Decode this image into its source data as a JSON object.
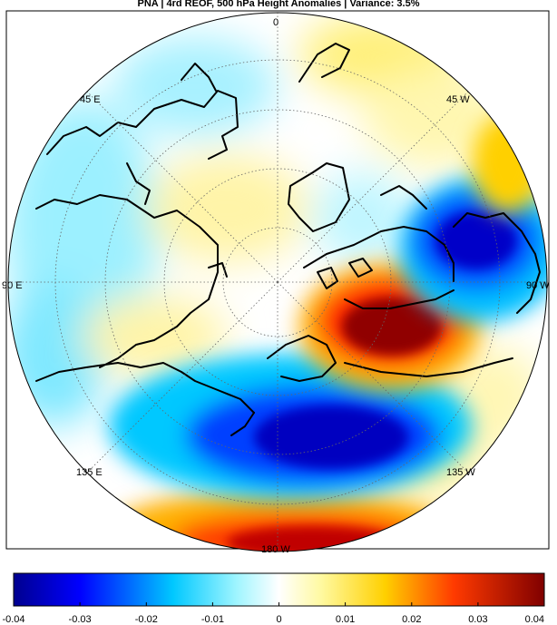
{
  "title": "PNA | 4rd REOF, 500 hPa Height Anomalies | Variance: 3.5%",
  "map": {
    "projection": "north-polar stereographic",
    "longitude_labels": [
      {
        "text": "0"
      },
      {
        "text": "45  W"
      },
      {
        "text": "90  W"
      },
      {
        "text": "135  W"
      },
      {
        "text": "180  W"
      },
      {
        "text": "135  E"
      },
      {
        "text": "90  E"
      },
      {
        "text": "45  E"
      }
    ],
    "graticule": "dotted",
    "coastlines": "black"
  },
  "colorbar": {
    "min": -0.04,
    "max": 0.04,
    "tick_labels": [
      "-0.04",
      "-0.03",
      "-0.02",
      "-0.01",
      "0",
      "0.01",
      "0.02",
      "0.03",
      "0.04"
    ],
    "colormap": "blue-cyan-white-yellow-red"
  },
  "colors": {
    "strong_negative": "#00008f",
    "negative": "#0050ff",
    "weak_negative": "#00d8ff",
    "zero": "#ffffff",
    "weak_positive": "#fff07a",
    "positive": "#ff8000",
    "strong_positive": "#800000"
  }
}
